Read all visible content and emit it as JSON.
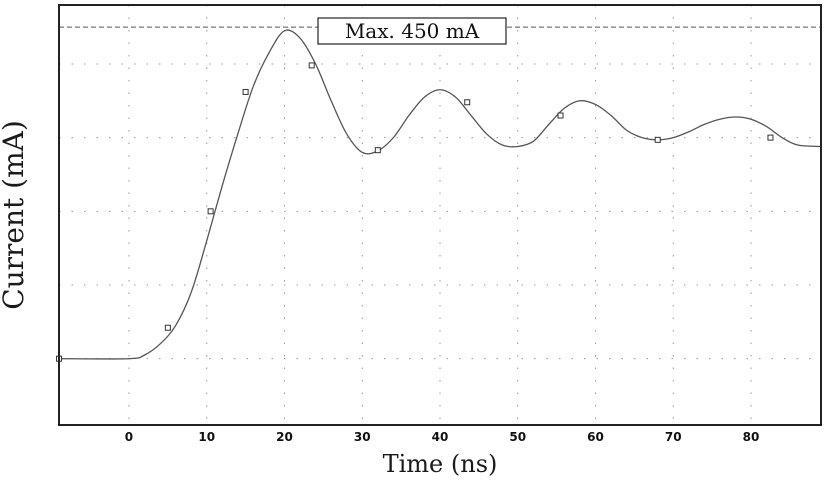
{
  "chart_data": {
    "type": "line",
    "xlabel": "Time (ns)",
    "ylabel": "Current (mA)",
    "xlim": [
      -9,
      89
    ],
    "ylim": [
      -90,
      480
    ],
    "x_ticks": [
      0,
      10,
      20,
      30,
      40,
      50,
      60,
      70,
      80
    ],
    "y_grid": [
      0,
      100,
      200,
      300,
      400
    ],
    "grid": true,
    "reference_line": {
      "value": 450,
      "label": "Max. 450 mA",
      "style": "dashed"
    },
    "series": [
      {
        "x": [
          -9,
          0,
          2,
          4,
          6,
          8,
          10,
          12,
          14,
          16,
          18,
          20,
          22,
          24,
          26,
          28,
          30,
          32,
          34,
          36,
          38,
          40,
          42,
          44,
          46,
          48,
          50,
          52,
          54,
          56,
          58,
          60,
          62,
          64,
          66,
          68,
          70,
          72,
          74,
          76,
          78,
          80,
          82,
          84,
          86,
          89
        ],
        "y": [
          0,
          0,
          5,
          20,
          45,
          90,
          160,
          235,
          305,
          370,
          415,
          445,
          435,
          400,
          350,
          305,
          280,
          282,
          300,
          330,
          355,
          365,
          355,
          330,
          305,
          290,
          288,
          295,
          318,
          340,
          350,
          345,
          330,
          310,
          300,
          297,
          300,
          308,
          318,
          325,
          328,
          325,
          315,
          300,
          290,
          288
        ]
      }
    ],
    "markers": {
      "shape": "open-square",
      "x": [
        -9,
        5,
        10.5,
        15,
        23.5,
        32,
        43.5,
        55.5,
        68,
        82.5
      ],
      "y": [
        0,
        42,
        200,
        362,
        398,
        283,
        348,
        330,
        297,
        300
      ]
    }
  }
}
